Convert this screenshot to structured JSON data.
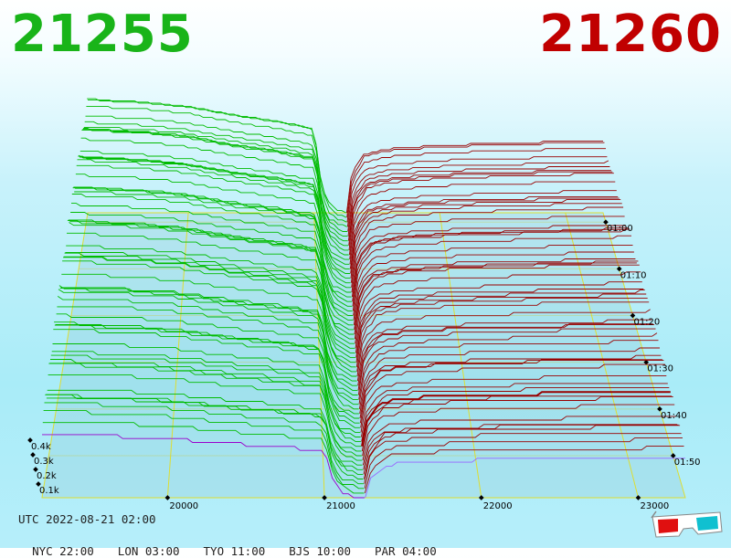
{
  "header": {
    "bid_price": "21255",
    "ask_price": "21260",
    "bid_color": "#19b419",
    "ask_color": "#c00000"
  },
  "footer": {
    "utc": "UTC 2022-08-21 02:00",
    "cities": [
      "NYC 22:00",
      "LON 03:00",
      "TYO 11:00",
      "BJS 10:00",
      "PAR 04:00"
    ]
  },
  "icons": {
    "stereo_glasses": "3d-glasses-icon"
  },
  "chart_data": {
    "type": "area",
    "title": "",
    "subtitle": "",
    "style": "3d order-book depth waterfall",
    "x_axis": {
      "label": "",
      "ticks": [
        20000,
        21000,
        22000,
        23000
      ],
      "range": [
        19200,
        23300
      ]
    },
    "z_axis": {
      "label": "",
      "ticks": [
        "0.1k",
        "0.2k",
        "0.3k",
        "0.4k"
      ],
      "range": [
        0,
        450
      ]
    },
    "time_axis": {
      "label": "",
      "ticks": [
        "01:00",
        "01:10",
        "01:20",
        "01:30",
        "01:40",
        "01:50"
      ],
      "range_minutes": [
        0,
        60
      ]
    },
    "grid": true,
    "legend": "none",
    "series": [
      {
        "side": "bid",
        "color": "#00bb00",
        "snapshots": 62,
        "values_from_price": [
          [
            21255,
            0
          ],
          [
            21200,
            5
          ],
          [
            21100,
            30
          ],
          [
            21050,
            100
          ],
          [
            21000,
            230
          ],
          [
            20700,
            250
          ],
          [
            20400,
            265
          ],
          [
            20000,
            290
          ],
          [
            19700,
            300
          ],
          [
            19200,
            310
          ]
        ]
      },
      {
        "side": "ask",
        "color": "#990000",
        "snapshots": 62,
        "values_from_price": [
          [
            21260,
            0
          ],
          [
            21300,
            110
          ],
          [
            21400,
            160
          ],
          [
            21600,
            175
          ],
          [
            22000,
            185
          ],
          [
            22500,
            190
          ],
          [
            23000,
            195
          ],
          [
            23300,
            198
          ]
        ]
      }
    ],
    "highlight_colors": {
      "latest_bid": "#9900cc",
      "latest_ask": "#9966ff"
    }
  }
}
